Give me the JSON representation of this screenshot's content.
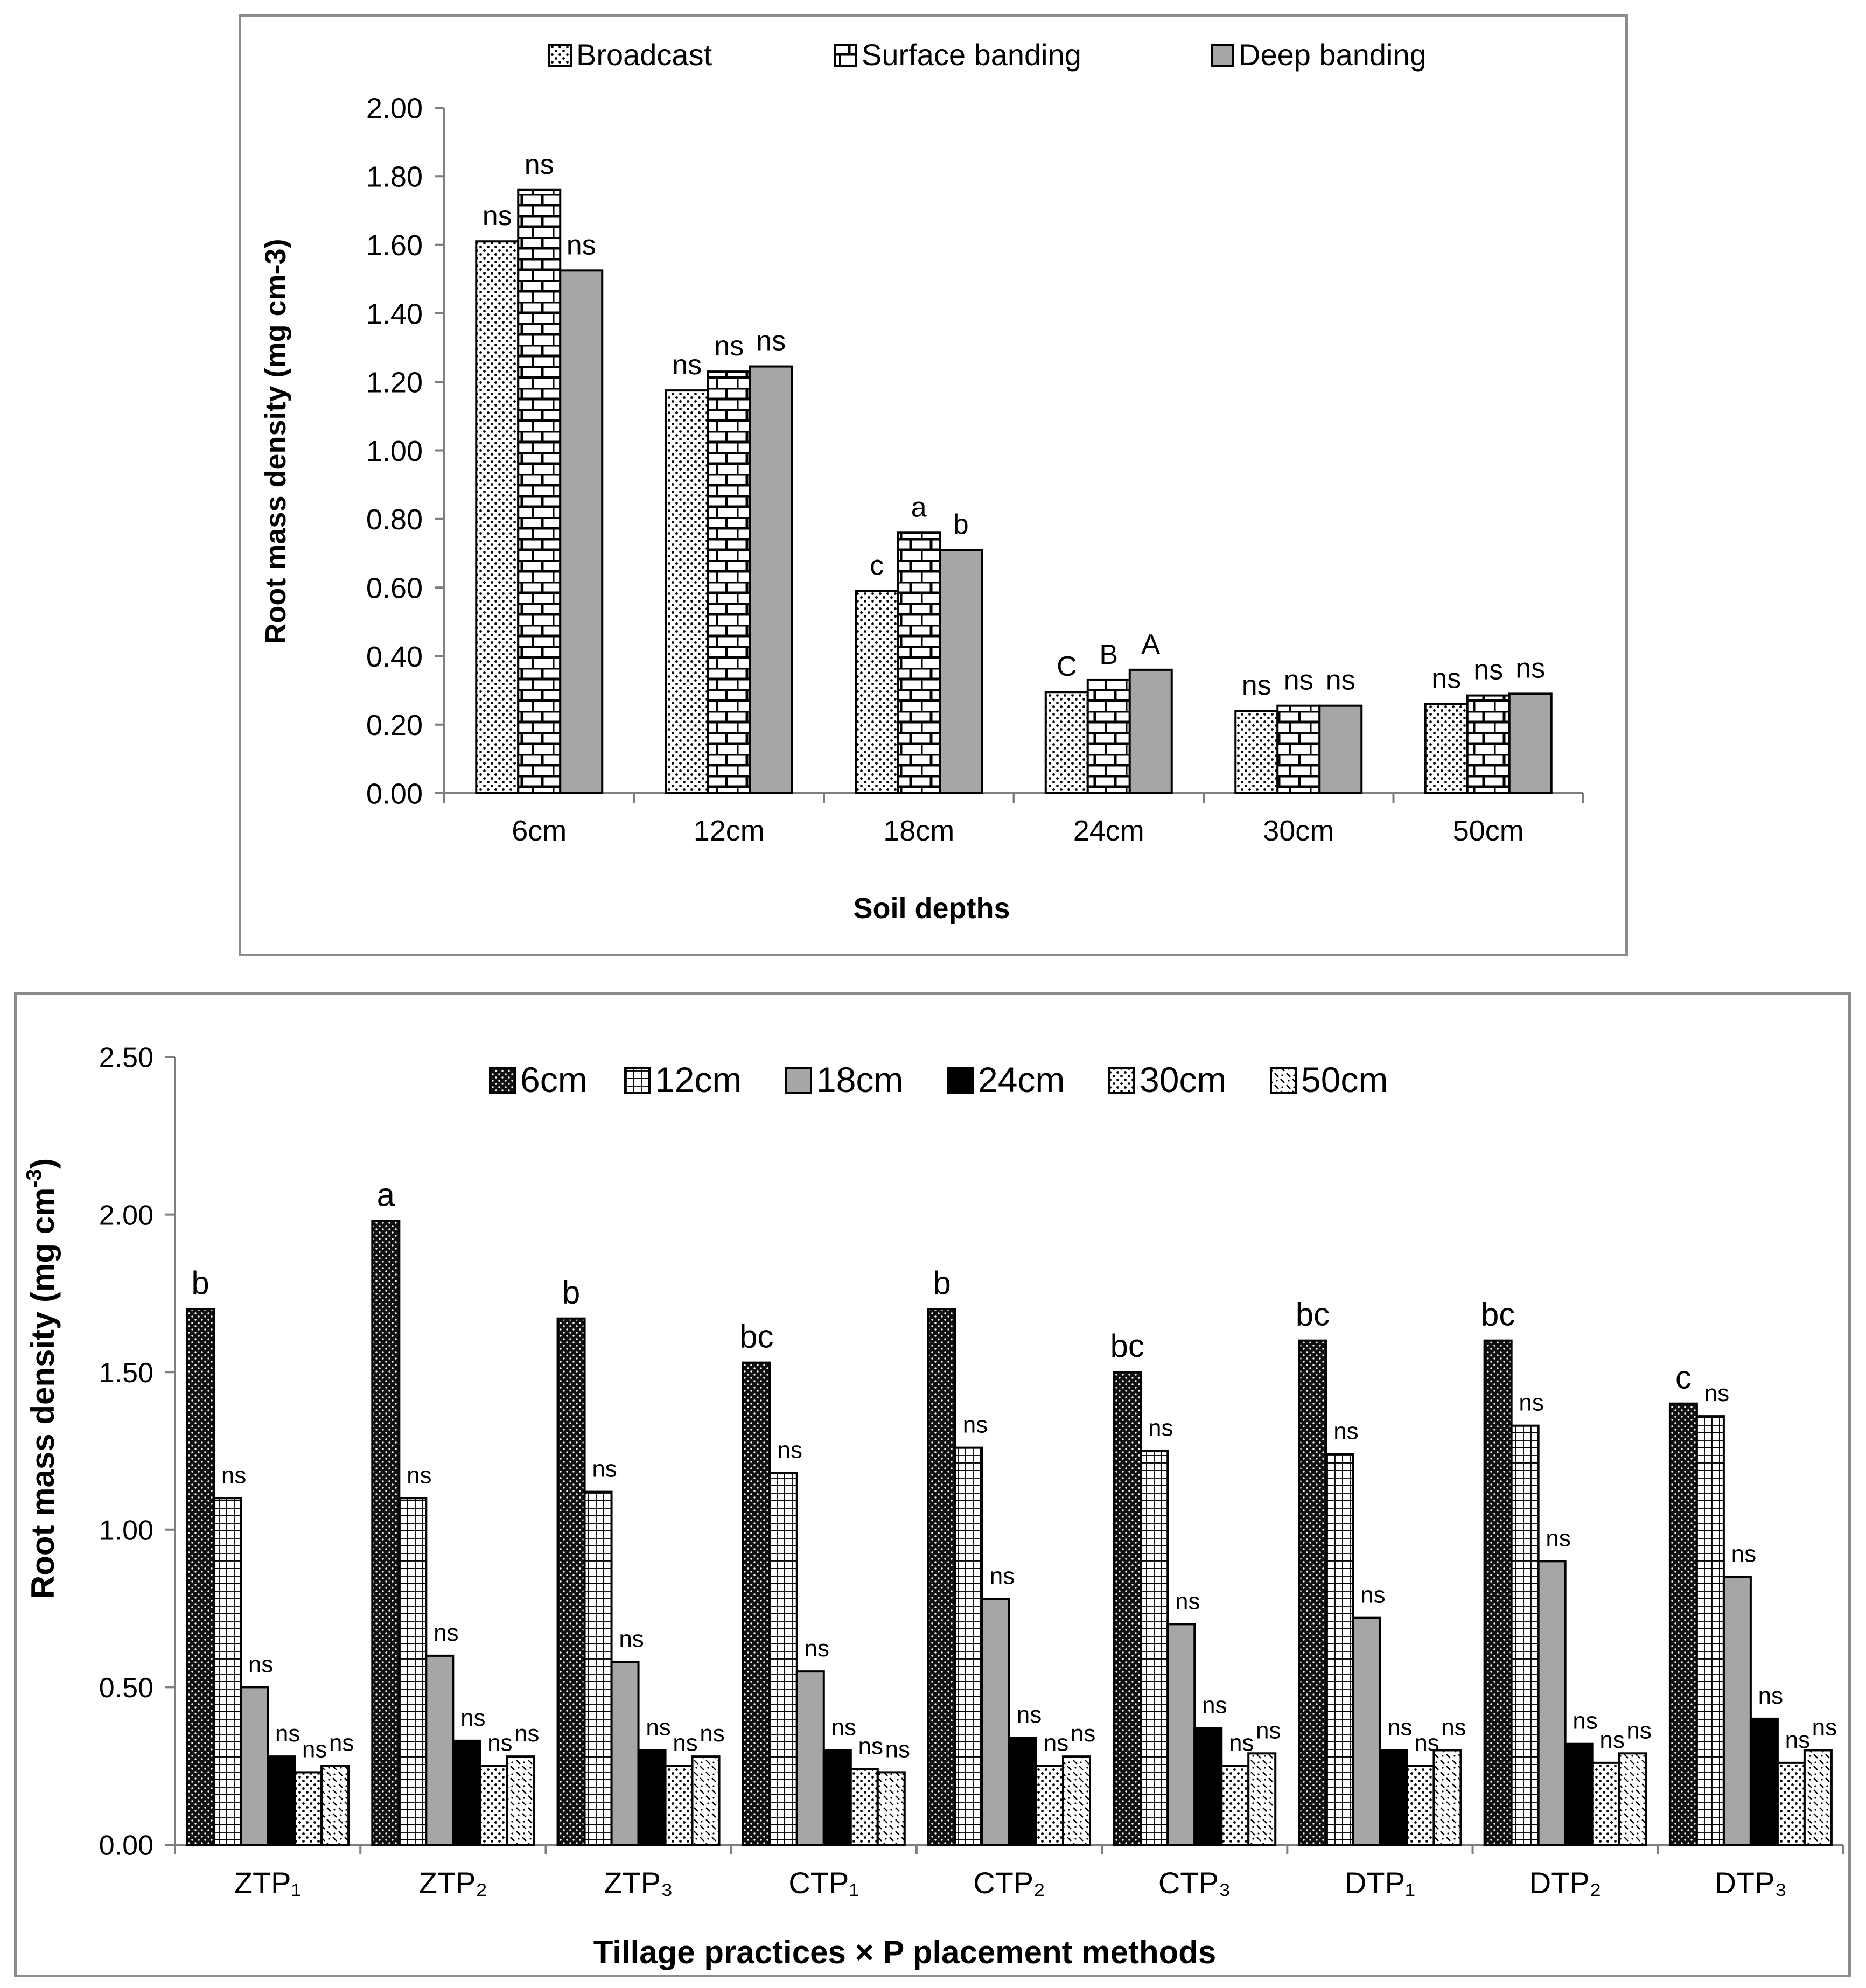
{
  "chart_data": [
    {
      "type": "bar",
      "xlabel": "Soil depths",
      "ylabel": "Root mass density (mg cm-3)",
      "ylim": [
        0,
        2.0
      ],
      "yticks": [
        "0.00",
        "0.20",
        "0.40",
        "0.60",
        "0.80",
        "1.00",
        "1.20",
        "1.40",
        "1.60",
        "1.80",
        "2.00"
      ],
      "legend_position": "top",
      "categories": [
        "6cm",
        "12cm",
        "18cm",
        "24cm",
        "30cm",
        "50cm"
      ],
      "series": [
        {
          "name": "Broadcast",
          "pattern": "dots",
          "color": "#ffffff",
          "values": [
            1.61,
            1.175,
            0.59,
            0.295,
            0.24,
            0.26
          ],
          "labels": [
            "ns",
            "ns",
            "c",
            "C",
            "ns",
            "ns"
          ]
        },
        {
          "name": "Surface banding",
          "pattern": "brick",
          "color": "#ffffff",
          "values": [
            1.76,
            1.23,
            0.76,
            0.33,
            0.255,
            0.285
          ],
          "labels": [
            "ns",
            "ns",
            "a",
            "B",
            "ns",
            "ns"
          ]
        },
        {
          "name": "Deep banding",
          "pattern": "solid",
          "color": "#a6a6a6",
          "values": [
            1.525,
            1.245,
            0.71,
            0.36,
            0.255,
            0.29
          ],
          "labels": [
            "ns",
            "ns",
            "b",
            "A",
            "ns",
            "ns"
          ]
        }
      ]
    },
    {
      "type": "bar",
      "xlabel": "Tillage practices × P placement methods",
      "ylabel": "Root mass density (mg cm",
      "ylabel_sup": "-3",
      "ylabel_end": ")",
      "ylim": [
        0,
        2.5
      ],
      "yticks": [
        "0.00",
        "0.50",
        "1.00",
        "1.50",
        "2.00",
        "2.50"
      ],
      "legend_position": "top",
      "categories": [
        "ZTP₁",
        "ZTP₂",
        "ZTP₃",
        "CTP₁",
        "CTP₂",
        "CTP₃",
        "DTP₁",
        "DTP₂",
        "DTP₃"
      ],
      "series": [
        {
          "name": "6cm",
          "pattern": "darkdots",
          "color": "#1a1a1a",
          "values": [
            1.7,
            1.98,
            1.67,
            1.53,
            1.7,
            1.5,
            1.6,
            1.6,
            1.4
          ],
          "labels": [
            "b",
            "a",
            "b",
            "bc",
            "b",
            "bc",
            "bc",
            "bc",
            "c"
          ]
        },
        {
          "name": "12cm",
          "pattern": "grid",
          "color": "#ffffff",
          "values": [
            1.1,
            1.1,
            1.12,
            1.18,
            1.26,
            1.25,
            1.24,
            1.33,
            1.36
          ],
          "labels": [
            "ns",
            "ns",
            "ns",
            "ns",
            "ns",
            "ns",
            "ns",
            "ns",
            "ns"
          ]
        },
        {
          "name": "18cm",
          "pattern": "solid",
          "color": "#a6a6a6",
          "values": [
            0.5,
            0.6,
            0.58,
            0.55,
            0.78,
            0.7,
            0.72,
            0.9,
            0.85
          ],
          "labels": [
            "ns",
            "ns",
            "ns",
            "ns",
            "ns",
            "ns",
            "ns",
            "ns",
            "ns"
          ]
        },
        {
          "name": "24cm",
          "pattern": "solid",
          "color": "#000000",
          "values": [
            0.28,
            0.33,
            0.3,
            0.3,
            0.34,
            0.37,
            0.3,
            0.32,
            0.4
          ],
          "labels": [
            "ns",
            "ns",
            "ns",
            "ns",
            "ns",
            "ns",
            "ns",
            "ns",
            "ns"
          ]
        },
        {
          "name": "30cm",
          "pattern": "dots",
          "color": "#ffffff",
          "values": [
            0.23,
            0.25,
            0.25,
            0.24,
            0.25,
            0.25,
            0.25,
            0.26,
            0.26
          ],
          "labels": [
            "ns",
            "ns",
            "ns",
            "ns",
            "ns",
            "ns",
            "ns",
            "ns",
            "ns"
          ]
        },
        {
          "name": "50cm",
          "pattern": "checker",
          "color": "#ffffff",
          "values": [
            0.25,
            0.28,
            0.28,
            0.23,
            0.28,
            0.29,
            0.3,
            0.29,
            0.3
          ],
          "labels": [
            "ns",
            "ns",
            "ns",
            "ns",
            "ns",
            "ns",
            "ns",
            "ns",
            "ns"
          ]
        }
      ]
    }
  ]
}
